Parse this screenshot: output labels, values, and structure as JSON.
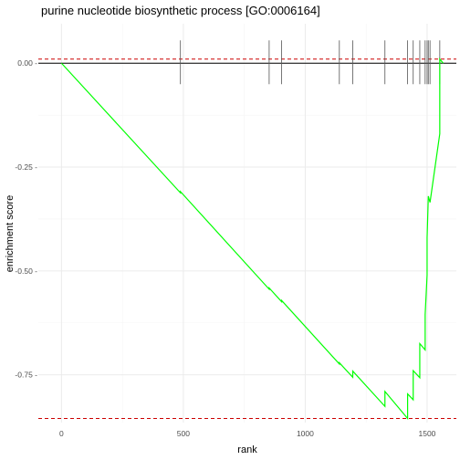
{
  "chart_data": {
    "type": "line",
    "title": "purine nucleotide biosynthetic process [GO:0006164]",
    "xlabel": "rank",
    "ylabel": "enrichment score",
    "xlim": [
      -95,
      1620
    ],
    "ylim": [
      -0.865,
      0.095
    ],
    "x_ticks": [
      0,
      500,
      1000,
      1500
    ],
    "x_tick_labels": [
      "0",
      "500",
      "1000",
      "1500"
    ],
    "y_ticks": [
      0.0,
      -0.25,
      -0.5,
      -0.75
    ],
    "y_tick_labels": [
      "0.00 -",
      "-0.25 -",
      "-0.50 -",
      "-0.75 -"
    ],
    "grid": true,
    "zero_line": 0.0,
    "threshold_lines": [
      0.01,
      -0.855
    ],
    "hit_ranks": [
      488,
      852,
      903,
      1140,
      1195,
      1327,
      1420,
      1443,
      1470,
      1492,
      1500,
      1505,
      1512,
      1552
    ],
    "series": [
      {
        "x": [
          0,
          488,
          488,
          852,
          852,
          903,
          903,
          1140,
          1140,
          1195,
          1195,
          1327,
          1327,
          1420,
          1420,
          1443,
          1443,
          1470,
          1470,
          1492,
          1492,
          1500,
          1500,
          1505,
          1505,
          1512,
          1512,
          1552,
          1552,
          1566
        ],
        "y": [
          0.0,
          -0.312,
          -0.309,
          -0.544,
          -0.541,
          -0.574,
          -0.571,
          -0.724,
          -0.721,
          -0.756,
          -0.741,
          -0.826,
          -0.79,
          -0.855,
          -0.796,
          -0.81,
          -0.74,
          -0.757,
          -0.675,
          -0.69,
          -0.605,
          -0.51,
          -0.42,
          -0.32,
          -0.32,
          -0.335,
          -0.335,
          -0.17,
          0.01,
          0.0
        ]
      }
    ],
    "colors": {
      "curve": "#00ff00",
      "threshold": "#cc0000",
      "zero_line": "#000000",
      "hit_marks": "#555555",
      "grid_major": "#ebebeb",
      "grid_minor": "#f5f5f5"
    }
  }
}
